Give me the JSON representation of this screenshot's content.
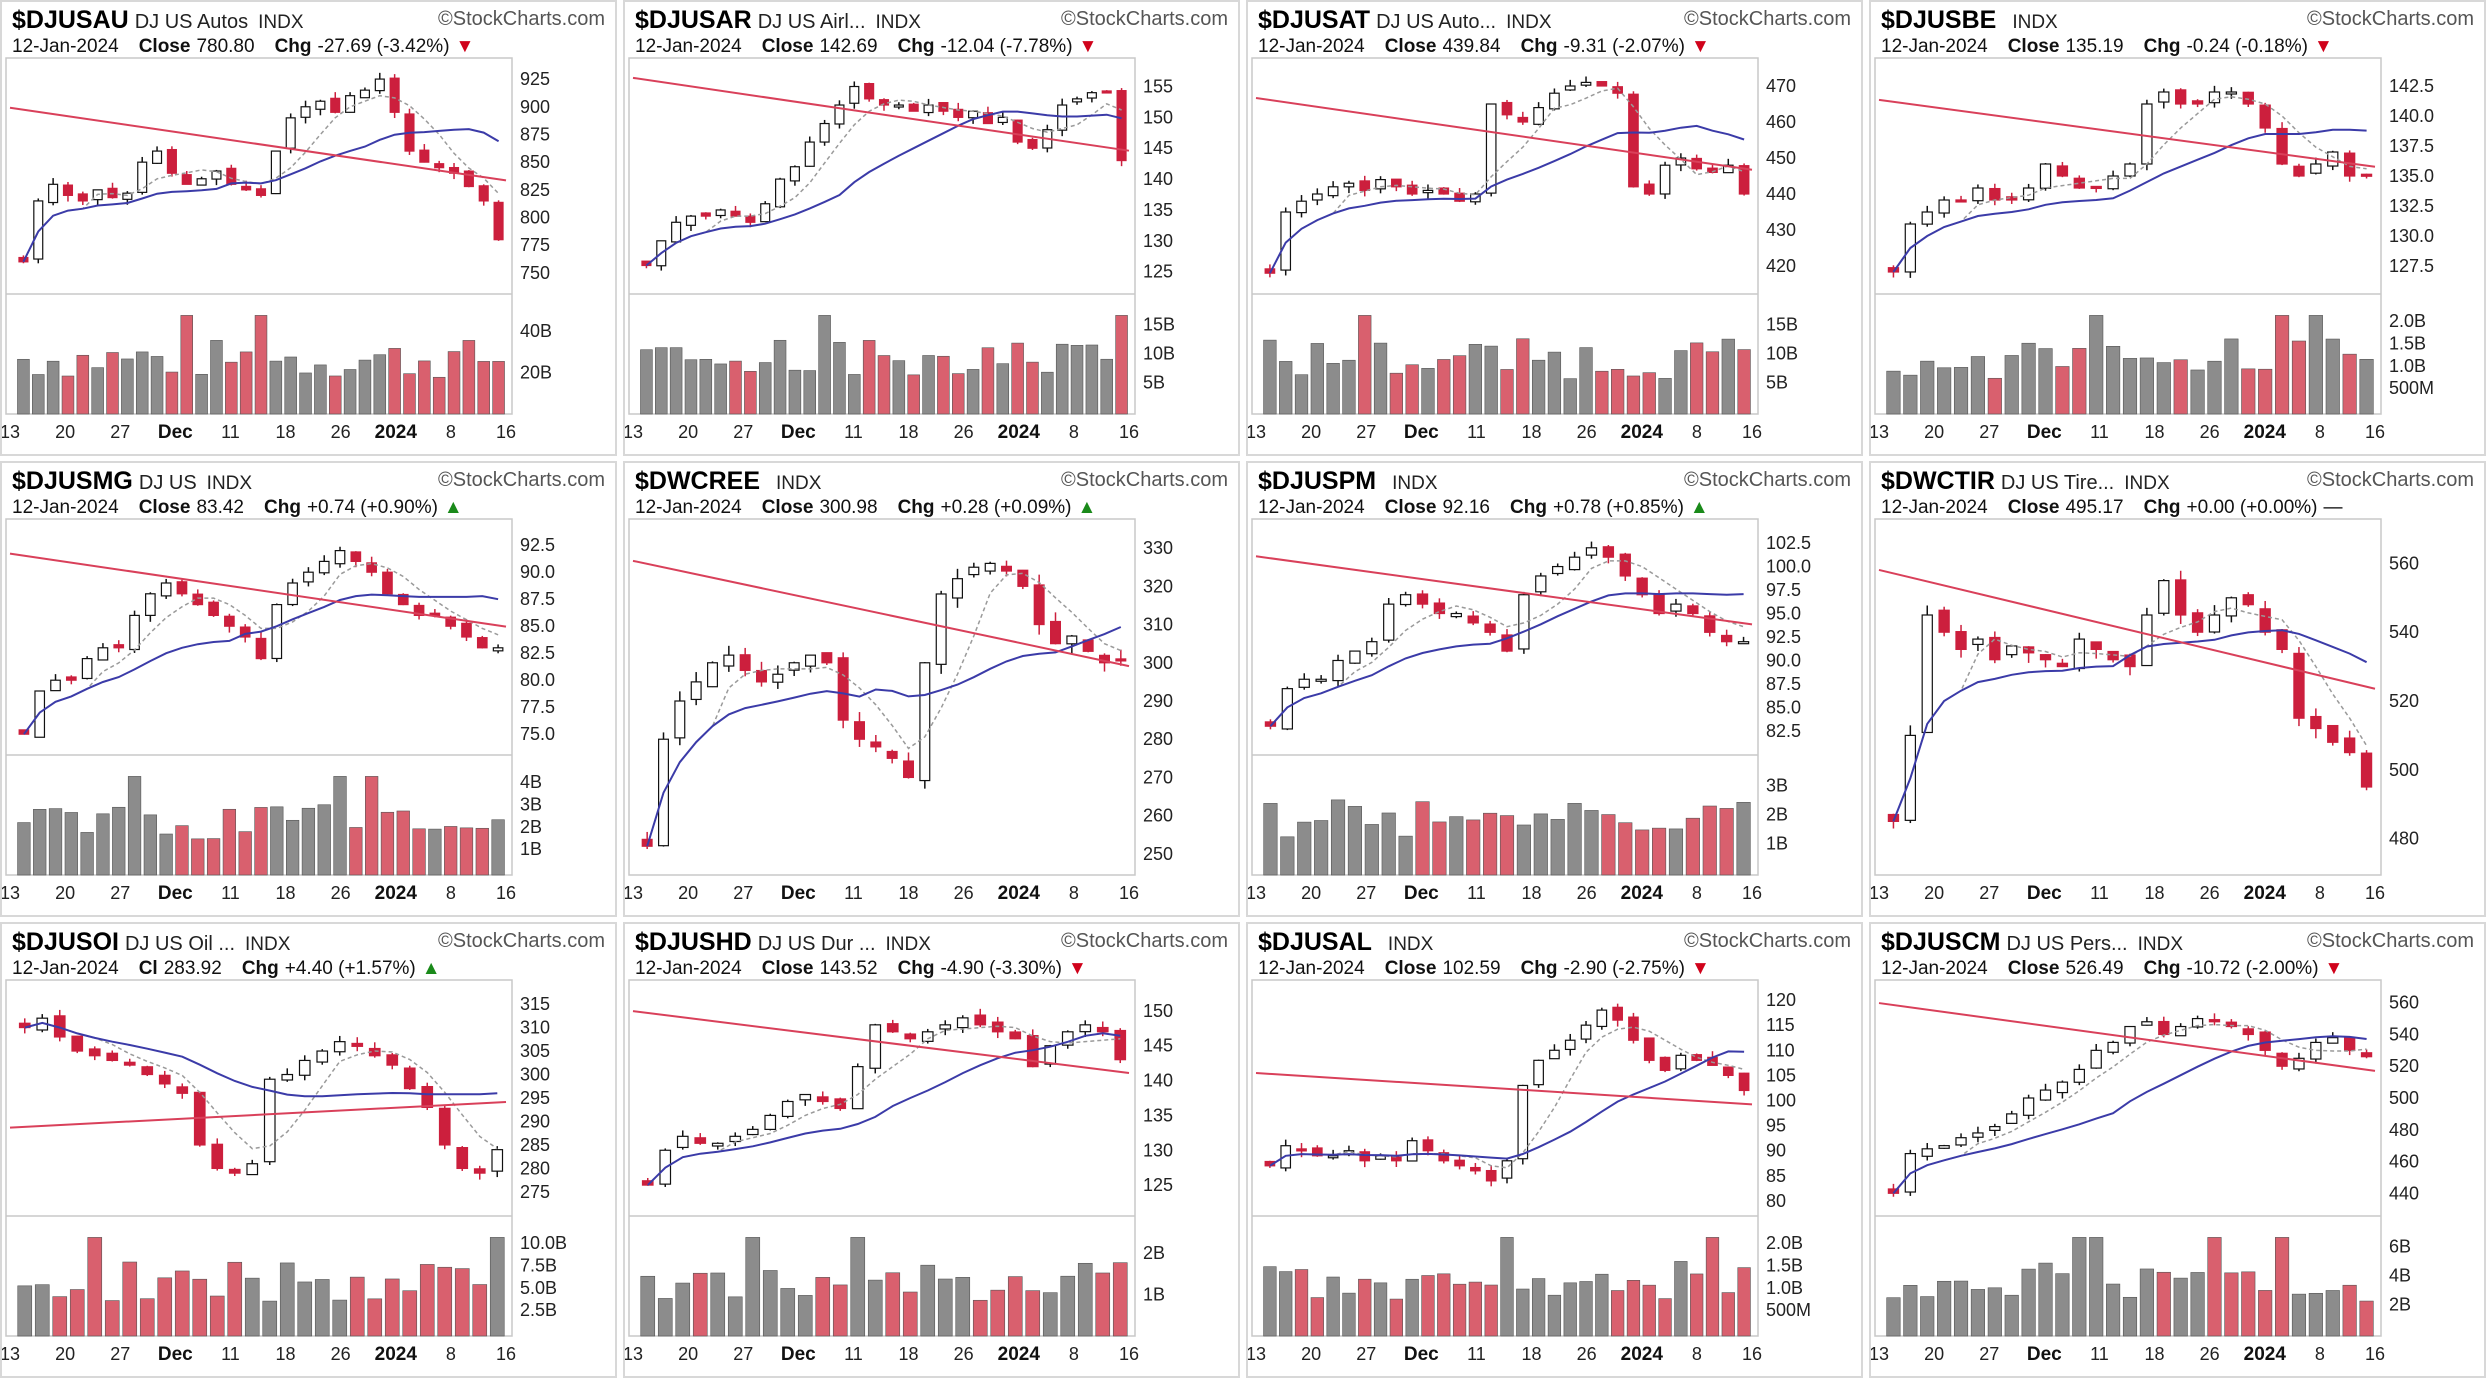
{
  "watermark": "StockCharts.com",
  "x_axis_labels": [
    "13",
    "20",
    "27",
    "Dec",
    "11",
    "18",
    "26",
    "2024",
    "8",
    "16"
  ],
  "colors": {
    "up_candle": "#ffffff",
    "down_candle": "#cc1f3d",
    "ma_red": "#d9405a",
    "ma_blue": "#3b3ba8",
    "ma_gray": "#9a9a9a",
    "vol_gray": "#8c8c8c",
    "vol_red": "#d9606e"
  },
  "panels": [
    {
      "symbol": "$DJUSAU",
      "desc": "DJ US Autos",
      "exch": "INDX",
      "date": "12-Jan-2024",
      "close_label": "Close",
      "close": "780.80",
      "chg_label": "Chg",
      "chg": "-27.69 (-3.42%)",
      "dir": "down",
      "price_ticks": [
        "925",
        "900",
        "875",
        "850",
        "825",
        "800",
        "775",
        "750"
      ],
      "vol_ticks": [
        "40B",
        "20B"
      ]
    },
    {
      "symbol": "$DJUSAR",
      "desc": "DJ US Airl...",
      "exch": "INDX",
      "date": "12-Jan-2024",
      "close_label": "Close",
      "close": "142.69",
      "chg_label": "Chg",
      "chg": "-12.04 (-7.78%)",
      "dir": "down",
      "price_ticks": [
        "155",
        "150",
        "145",
        "140",
        "135",
        "130",
        "125"
      ],
      "vol_ticks": [
        "15B",
        "10B",
        "5B"
      ]
    },
    {
      "symbol": "$DJUSAT",
      "desc": "DJ US Auto...",
      "exch": "INDX",
      "date": "12-Jan-2024",
      "close_label": "Close",
      "close": "439.84",
      "chg_label": "Chg",
      "chg": "-9.31 (-2.07%)",
      "dir": "down",
      "price_ticks": [
        "470",
        "460",
        "450",
        "440",
        "430",
        "420"
      ],
      "vol_ticks": [
        "15B",
        "10B",
        "5B"
      ]
    },
    {
      "symbol": "$DJUSBE",
      "desc": "",
      "exch": "INDX",
      "date": "12-Jan-2024",
      "close_label": "Close",
      "close": "135.19",
      "chg_label": "Chg",
      "chg": "-0.24 (-0.18%)",
      "dir": "down",
      "price_ticks": [
        "142.5",
        "140.0",
        "137.5",
        "135.0",
        "132.5",
        "130.0",
        "127.5"
      ],
      "vol_ticks": [
        "2.0B",
        "1.5B",
        "1.0B",
        "500M"
      ]
    },
    {
      "symbol": "$DJUSMG",
      "desc": "DJ US",
      "exch": "INDX",
      "date": "12-Jan-2024",
      "close_label": "Close",
      "close": "83.42",
      "chg_label": "Chg",
      "chg": "+0.74 (+0.90%)",
      "dir": "up",
      "price_ticks": [
        "92.5",
        "90.0",
        "87.5",
        "85.0",
        "82.5",
        "80.0",
        "77.5",
        "75.0"
      ],
      "vol_ticks": [
        "4B",
        "3B",
        "2B",
        "1B"
      ]
    },
    {
      "symbol": "$DWCREE",
      "desc": "",
      "exch": "INDX",
      "date": "12-Jan-2024",
      "close_label": "Close",
      "close": "300.98",
      "chg_label": "Chg",
      "chg": "+0.28 (+0.09%)",
      "dir": "up",
      "price_ticks": [
        "330",
        "320",
        "310",
        "300",
        "290",
        "280",
        "270",
        "260",
        "250"
      ],
      "vol_ticks": []
    },
    {
      "symbol": "$DJUSPM",
      "desc": "",
      "exch": "INDX",
      "date": "12-Jan-2024",
      "close_label": "Close",
      "close": "92.16",
      "chg_label": "Chg",
      "chg": "+0.78 (+0.85%)",
      "dir": "up",
      "price_ticks": [
        "102.5",
        "100.0",
        "97.5",
        "95.0",
        "92.5",
        "90.0",
        "87.5",
        "85.0",
        "82.5"
      ],
      "vol_ticks": [
        "3B",
        "2B",
        "1B"
      ]
    },
    {
      "symbol": "$DWCTIR",
      "desc": "DJ US Tire...",
      "exch": "INDX",
      "date": "12-Jan-2024",
      "close_label": "Close",
      "close": "495.17",
      "chg_label": "Chg",
      "chg": "+0.00 (+0.00%)",
      "dir": "flat",
      "price_ticks": [
        "560",
        "540",
        "520",
        "500",
        "480"
      ],
      "vol_ticks": []
    },
    {
      "symbol": "$DJUSOI",
      "desc": "DJ US Oil ...",
      "exch": "INDX",
      "date": "12-Jan-2024",
      "close_label": "Cl",
      "close": "283.92",
      "chg_label": "Chg",
      "chg": "+4.40 (+1.57%)",
      "dir": "up",
      "price_ticks": [
        "315",
        "310",
        "305",
        "300",
        "295",
        "290",
        "285",
        "280",
        "275"
      ],
      "vol_ticks": [
        "10.0B",
        "7.5B",
        "5.0B",
        "2.5B"
      ]
    },
    {
      "symbol": "$DJUSHD",
      "desc": "DJ US Dur ...",
      "exch": "INDX",
      "date": "12-Jan-2024",
      "close_label": "Close",
      "close": "143.52",
      "chg_label": "Chg",
      "chg": "-4.90 (-3.30%)",
      "dir": "down",
      "price_ticks": [
        "150",
        "145",
        "140",
        "135",
        "130",
        "125"
      ],
      "vol_ticks": [
        "2B",
        "1B"
      ]
    },
    {
      "symbol": "$DJUSAL",
      "desc": "",
      "exch": "INDX",
      "date": "12-Jan-2024",
      "close_label": "Close",
      "close": "102.59",
      "chg_label": "Chg",
      "chg": "-2.90 (-2.75%)",
      "dir": "down",
      "price_ticks": [
        "120",
        "115",
        "110",
        "105",
        "100",
        "95",
        "90",
        "85",
        "80"
      ],
      "vol_ticks": [
        "2.0B",
        "1.5B",
        "1.0B",
        "500M"
      ]
    },
    {
      "symbol": "$DJUSCM",
      "desc": "DJ US Pers...",
      "exch": "INDX",
      "date": "12-Jan-2024",
      "close_label": "Close",
      "close": "526.49",
      "chg_label": "Chg",
      "chg": "-10.72 (-2.00%)",
      "dir": "down",
      "price_ticks": [
        "560",
        "540",
        "520",
        "500",
        "480",
        "460",
        "440"
      ],
      "vol_ticks": [
        "6B",
        "4B",
        "2B"
      ]
    }
  ],
  "chart_data": [
    {
      "type": "candlestick",
      "symbol": "$DJUSAU",
      "ylim": [
        740,
        935
      ],
      "x": [
        "13",
        "20",
        "27",
        "Dec",
        "11",
        "18",
        "26",
        "2024",
        "8",
        "16"
      ],
      "close_path": [
        760,
        815,
        830,
        820,
        815,
        825,
        818,
        822,
        850,
        860,
        840,
        830,
        835,
        842,
        830,
        825,
        820,
        860,
        890,
        900,
        905,
        895,
        910,
        915,
        925,
        895,
        860,
        850,
        845,
        840,
        828,
        815,
        780
      ]
    },
    {
      "type": "candlestick",
      "symbol": "$DJUSAR",
      "ylim": [
        123,
        158
      ],
      "x": [
        "13",
        "20",
        "27",
        "Dec",
        "11",
        "18",
        "26",
        "2024",
        "8",
        "16"
      ],
      "close_path": [
        126,
        130,
        133,
        134,
        134,
        135,
        134,
        133,
        136,
        140,
        142,
        146,
        149,
        152,
        155,
        153,
        152,
        152,
        151,
        152,
        151,
        150,
        151,
        149,
        150,
        146,
        145,
        148,
        152,
        153,
        154,
        154,
        143
      ]
    },
    {
      "type": "candlestick",
      "symbol": "$DJUSAT",
      "ylim": [
        415,
        475
      ],
      "x": [
        "13",
        "20",
        "27",
        "Dec",
        "11",
        "18",
        "26",
        "2024",
        "8",
        "16"
      ],
      "close_path": [
        418,
        435,
        438,
        440,
        442,
        443,
        441,
        444,
        442,
        440,
        441,
        440,
        438,
        440,
        465,
        462,
        460,
        464,
        468,
        470,
        471,
        470,
        468,
        442,
        440,
        448,
        450,
        447,
        446,
        448,
        440
      ]
    },
    {
      "type": "candlestick",
      "symbol": "$DJUSBE",
      "ylim": [
        126,
        144
      ],
      "x": [
        "13",
        "20",
        "27",
        "Dec",
        "11",
        "18",
        "26",
        "2024",
        "8",
        "16"
      ],
      "close_path": [
        127,
        131,
        132,
        133,
        133,
        134,
        133,
        133,
        134,
        136,
        135,
        134,
        134,
        135,
        136,
        141,
        142,
        141,
        141,
        142,
        142,
        141,
        139,
        136,
        135,
        136,
        137,
        135,
        135
      ]
    },
    {
      "type": "candlestick",
      "symbol": "$DJUSMG",
      "ylim": [
        74,
        94
      ],
      "x": [
        "13",
        "20",
        "27",
        "Dec",
        "11",
        "18",
        "26",
        "2024",
        "8",
        "16"
      ],
      "close_path": [
        75,
        79,
        80,
        80,
        82,
        83,
        83,
        86,
        88,
        89,
        88,
        87,
        86,
        85,
        84,
        82,
        87,
        89,
        90,
        91,
        92,
        91,
        90,
        88,
        87,
        86,
        86,
        85,
        84,
        83,
        83
      ]
    },
    {
      "type": "candlestick",
      "symbol": "$DWCREE",
      "ylim": [
        245,
        335
      ],
      "x": [
        "13",
        "20",
        "27",
        "Dec",
        "11",
        "18",
        "26",
        "2024",
        "8",
        "16"
      ],
      "close_path": [
        252,
        280,
        290,
        295,
        300,
        302,
        298,
        295,
        297,
        300,
        302,
        300,
        285,
        280,
        278,
        275,
        270,
        300,
        318,
        322,
        325,
        326,
        324,
        320,
        310,
        305,
        307,
        303,
        300,
        301
      ]
    },
    {
      "type": "candlestick",
      "symbol": "$DJUSPM",
      "ylim": [
        81,
        104
      ],
      "x": [
        "13",
        "20",
        "27",
        "Dec",
        "11",
        "18",
        "26",
        "2024",
        "8",
        "16"
      ],
      "close_path": [
        83,
        87,
        88,
        88,
        90,
        91,
        92,
        96,
        97,
        96,
        95,
        95,
        94,
        93,
        91,
        97,
        99,
        100,
        101,
        102,
        101,
        99,
        97,
        95,
        96,
        95,
        93,
        92,
        92
      ]
    },
    {
      "type": "candlestick",
      "symbol": "$DWCTIR",
      "ylim": [
        470,
        570
      ],
      "x": [
        "13",
        "20",
        "27",
        "Dec",
        "11",
        "18",
        "26",
        "2024",
        "8",
        "16"
      ],
      "close_path": [
        485,
        510,
        545,
        540,
        535,
        538,
        532,
        536,
        534,
        532,
        530,
        538,
        535,
        532,
        530,
        545,
        555,
        545,
        540,
        545,
        550,
        548,
        540,
        535,
        515,
        512,
        508,
        505,
        495
      ]
    },
    {
      "type": "candlestick",
      "symbol": "$DJUSOI",
      "ylim": [
        272,
        318
      ],
      "x": [
        "13",
        "20",
        "27",
        "Dec",
        "11",
        "18",
        "26",
        "2024",
        "8",
        "16"
      ],
      "close_path": [
        310,
        312,
        308,
        305,
        304,
        303,
        302,
        300,
        298,
        296,
        285,
        280,
        279,
        281,
        299,
        300,
        303,
        305,
        307,
        306,
        304,
        302,
        297,
        293,
        285,
        280,
        279,
        284
      ]
    },
    {
      "type": "candlestick",
      "symbol": "$DJUSHD",
      "ylim": [
        122,
        153
      ],
      "x": [
        "13",
        "20",
        "27",
        "Dec",
        "11",
        "18",
        "26",
        "2024",
        "8",
        "16"
      ],
      "close_path": [
        125,
        130,
        132,
        131,
        131,
        132,
        133,
        135,
        137,
        138,
        137,
        136,
        142,
        148,
        147,
        146,
        147,
        148,
        149,
        148,
        147,
        146,
        142,
        145,
        147,
        148,
        147,
        143
      ]
    },
    {
      "type": "candlestick",
      "symbol": "$DJUSAL",
      "ylim": [
        79,
        122
      ],
      "x": [
        "13",
        "20",
        "27",
        "Dec",
        "11",
        "18",
        "26",
        "2024",
        "8",
        "16"
      ],
      "close_path": [
        87,
        91,
        90,
        89,
        89,
        90,
        88,
        89,
        88,
        92,
        90,
        88,
        87,
        86,
        84,
        88,
        103,
        108,
        110,
        112,
        115,
        118,
        116,
        112,
        108,
        106,
        109,
        108,
        107,
        105,
        102
      ]
    },
    {
      "type": "candlestick",
      "symbol": "$DJUSCM",
      "ylim": [
        432,
        568
      ],
      "x": [
        "13",
        "20",
        "27",
        "Dec",
        "11",
        "18",
        "26",
        "2024",
        "8",
        "16"
      ],
      "close_path": [
        440,
        465,
        468,
        470,
        475,
        478,
        482,
        490,
        500,
        505,
        510,
        518,
        530,
        535,
        545,
        548,
        540,
        545,
        550,
        548,
        545,
        540,
        530,
        520,
        525,
        535,
        538,
        530,
        526
      ]
    }
  ]
}
